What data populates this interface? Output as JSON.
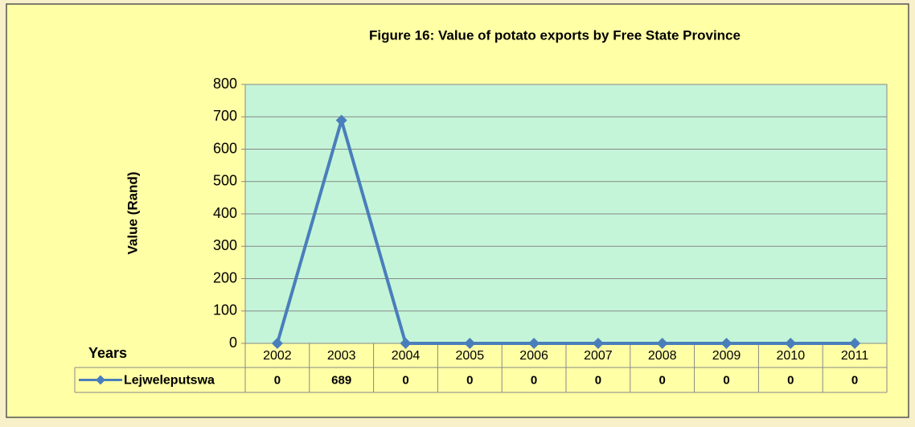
{
  "chart_data": {
    "type": "line",
    "title": "Figure 16: Value of potato exports by Free State Province",
    "y_label": "Value (Rand)",
    "x_label": "Years",
    "categories": [
      "2002",
      "2003",
      "2004",
      "2005",
      "2006",
      "2007",
      "2008",
      "2009",
      "2010",
      "2011"
    ],
    "series": [
      {
        "name": "Lejweleputswa",
        "color": "#4a7ebb",
        "values": [
          0,
          689,
          0,
          0,
          0,
          0,
          0,
          0,
          0,
          0
        ]
      }
    ],
    "ylim": [
      0,
      800
    ],
    "yticks": [
      0,
      100,
      200,
      300,
      400,
      500,
      600,
      700,
      800
    ],
    "grid": true,
    "plot_background": "#c4f5d8",
    "data_table": true
  }
}
